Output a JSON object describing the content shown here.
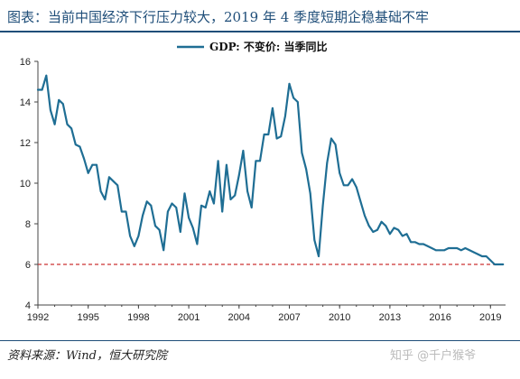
{
  "header": {
    "title": "图表：当前中国经济下行压力较大，2019 年 4 季度短期企稳基础不牢"
  },
  "footer": {
    "source": "资料来源：Wind，恒大研究院",
    "watermark": "知乎 @千户猴爷"
  },
  "colors": {
    "series": "#1f6e94",
    "reference": "#cc3333",
    "axis": "#444444",
    "title": "#1f4e79"
  },
  "chart_data": {
    "type": "line",
    "title": "",
    "xlabel": "",
    "ylabel": "",
    "xlim": [
      1992,
      2019.9
    ],
    "ylim": [
      4,
      16
    ],
    "grid": false,
    "legend_position": "top-center",
    "x_ticks": [
      "1992",
      "1995",
      "1998",
      "2001",
      "2004",
      "2007",
      "2010",
      "2013",
      "2016",
      "2019"
    ],
    "y_ticks": [
      "4",
      "6",
      "8",
      "10",
      "12",
      "14",
      "16"
    ],
    "series": [
      {
        "name": "GDP: 不变价: 当季同比",
        "color": "#1f6e94",
        "x": [
          1992.0,
          1992.25,
          1992.5,
          1992.75,
          1993.0,
          1993.25,
          1993.5,
          1993.75,
          1994.0,
          1994.25,
          1994.5,
          1994.75,
          1995.0,
          1995.25,
          1995.5,
          1995.75,
          1996.0,
          1996.25,
          1996.5,
          1996.75,
          1997.0,
          1997.25,
          1997.5,
          1997.75,
          1998.0,
          1998.25,
          1998.5,
          1998.75,
          1999.0,
          1999.25,
          1999.5,
          1999.75,
          2000.0,
          2000.25,
          2000.5,
          2000.75,
          2001.0,
          2001.25,
          2001.5,
          2001.75,
          2002.0,
          2002.25,
          2002.5,
          2002.75,
          2003.0,
          2003.25,
          2003.5,
          2003.75,
          2004.0,
          2004.25,
          2004.5,
          2004.75,
          2005.0,
          2005.25,
          2005.5,
          2005.75,
          2006.0,
          2006.25,
          2006.5,
          2006.75,
          2007.0,
          2007.25,
          2007.5,
          2007.75,
          2008.0,
          2008.25,
          2008.5,
          2008.75,
          2009.0,
          2009.25,
          2009.5,
          2009.75,
          2010.0,
          2010.25,
          2010.5,
          2010.75,
          2011.0,
          2011.25,
          2011.5,
          2011.75,
          2012.0,
          2012.25,
          2012.5,
          2012.75,
          2013.0,
          2013.25,
          2013.5,
          2013.75,
          2014.0,
          2014.25,
          2014.5,
          2014.75,
          2015.0,
          2015.25,
          2015.5,
          2015.75,
          2016.0,
          2016.25,
          2016.5,
          2016.75,
          2017.0,
          2017.25,
          2017.5,
          2017.75,
          2018.0,
          2018.25,
          2018.5,
          2018.75,
          2019.0,
          2019.25,
          2019.5,
          2019.75
        ],
        "y": [
          14.6,
          14.6,
          15.3,
          13.6,
          12.9,
          14.1,
          13.9,
          12.9,
          12.7,
          11.9,
          11.8,
          11.2,
          10.5,
          10.9,
          10.9,
          9.6,
          9.2,
          10.3,
          10.1,
          9.9,
          8.6,
          8.6,
          7.4,
          6.9,
          7.4,
          8.4,
          9.1,
          8.9,
          7.9,
          7.7,
          6.7,
          8.6,
          9.0,
          8.8,
          7.6,
          9.5,
          8.3,
          7.8,
          7.0,
          8.9,
          8.8,
          9.6,
          9.0,
          11.1,
          8.6,
          10.9,
          9.2,
          9.4,
          10.4,
          11.6,
          9.6,
          8.8,
          11.1,
          11.1,
          12.4,
          12.4,
          13.7,
          12.2,
          12.3,
          13.3,
          14.9,
          14.2,
          14.0,
          11.5,
          10.7,
          9.5,
          7.2,
          6.4,
          8.9,
          11.0,
          12.2,
          11.9,
          10.5,
          9.9,
          9.9,
          10.2,
          9.8,
          9.1,
          8.4,
          7.9,
          7.6,
          7.7,
          8.1,
          7.9,
          7.5,
          7.8,
          7.7,
          7.4,
          7.5,
          7.1,
          7.1,
          7.0,
          7.0,
          6.9,
          6.8,
          6.7,
          6.7,
          6.7,
          6.8,
          6.8,
          6.8,
          6.7,
          6.8,
          6.7,
          6.6,
          6.5,
          6.4,
          6.4,
          6.2,
          6.0,
          6.0,
          6.0
        ]
      }
    ],
    "reference_line": {
      "y": 6,
      "style": "dashed",
      "color": "#cc3333"
    }
  }
}
